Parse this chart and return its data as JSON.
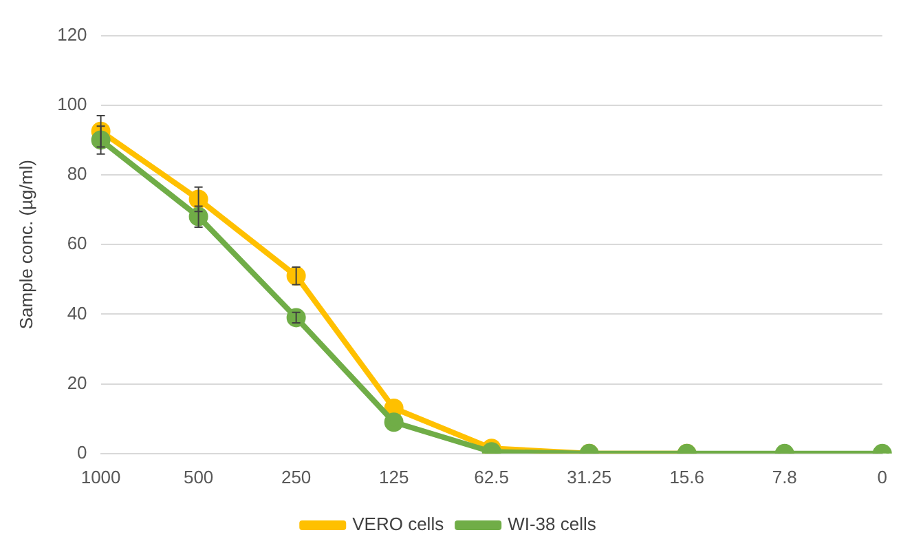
{
  "chart_data": {
    "type": "line",
    "ylabel": "Sample conc. (µg/ml)",
    "categories": [
      "1000",
      "500",
      "250",
      "125",
      "62.5",
      "31.25",
      "15.6",
      "7.8",
      "0"
    ],
    "series": [
      {
        "name": "VERO cells",
        "color": "#ffc000",
        "values": [
          92.5,
          73,
          51,
          13,
          1.5,
          0,
          0,
          null,
          null
        ],
        "errors": [
          4.5,
          3.5,
          2.5,
          null,
          null,
          null,
          null,
          null,
          null
        ]
      },
      {
        "name": "WI-38 cells",
        "color": "#70ad47",
        "values": [
          90,
          68,
          39,
          9,
          0.5,
          0,
          0,
          0,
          0
        ],
        "errors": [
          4,
          3,
          1.5,
          null,
          null,
          null,
          null,
          null,
          null
        ]
      }
    ],
    "ylim": [
      0,
      120
    ],
    "yticks": [
      0,
      20,
      40,
      60,
      80,
      100,
      120
    ],
    "grid": "y",
    "legend": "bottom",
    "marker": "circle",
    "line_style": "solid"
  }
}
